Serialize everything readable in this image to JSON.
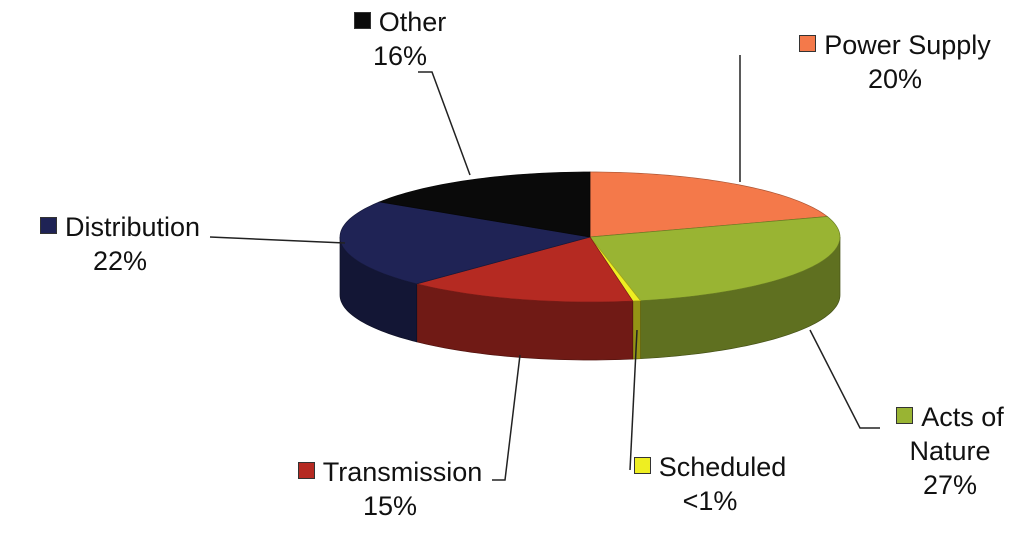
{
  "chart_data": {
    "type": "pie",
    "categories": [
      "Power Supply",
      "Acts of Nature",
      "Scheduled",
      "Transmission",
      "Distribution",
      "Other"
    ],
    "values": [
      20,
      27,
      0.5,
      15,
      22,
      16
    ],
    "value_labels": [
      "20%",
      "27%",
      "<1%",
      "15%",
      "22%",
      "16%"
    ],
    "colors": [
      "#f4794a",
      "#99b433",
      "#eeee22",
      "#b52a22",
      "#1f2355",
      "#0a0a0a"
    ]
  }
}
